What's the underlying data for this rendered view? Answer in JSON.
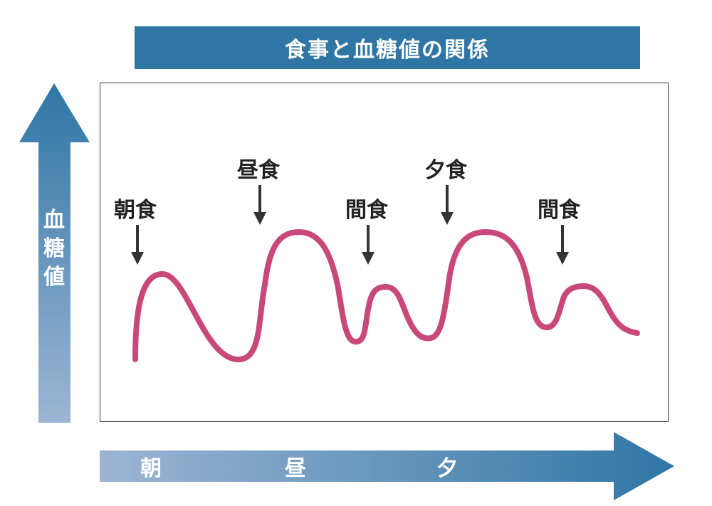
{
  "diagram": {
    "title": "食事と血糖値の関係",
    "y_axis": {
      "label_chars": [
        "血",
        "糖",
        "値"
      ]
    },
    "x_axis": {
      "labels": [
        "朝",
        "昼",
        "夕"
      ]
    },
    "meals": [
      {
        "label": "朝食"
      },
      {
        "label": "昼食"
      },
      {
        "label": "間食"
      },
      {
        "label": "夕食"
      },
      {
        "label": "間食"
      }
    ],
    "colors": {
      "banner": "#2f76a5",
      "arrow_dark": "#2f76a5",
      "arrow_light": "#9db5d3",
      "curve": "#c9487a",
      "meal_arrow": "#333333"
    }
  }
}
